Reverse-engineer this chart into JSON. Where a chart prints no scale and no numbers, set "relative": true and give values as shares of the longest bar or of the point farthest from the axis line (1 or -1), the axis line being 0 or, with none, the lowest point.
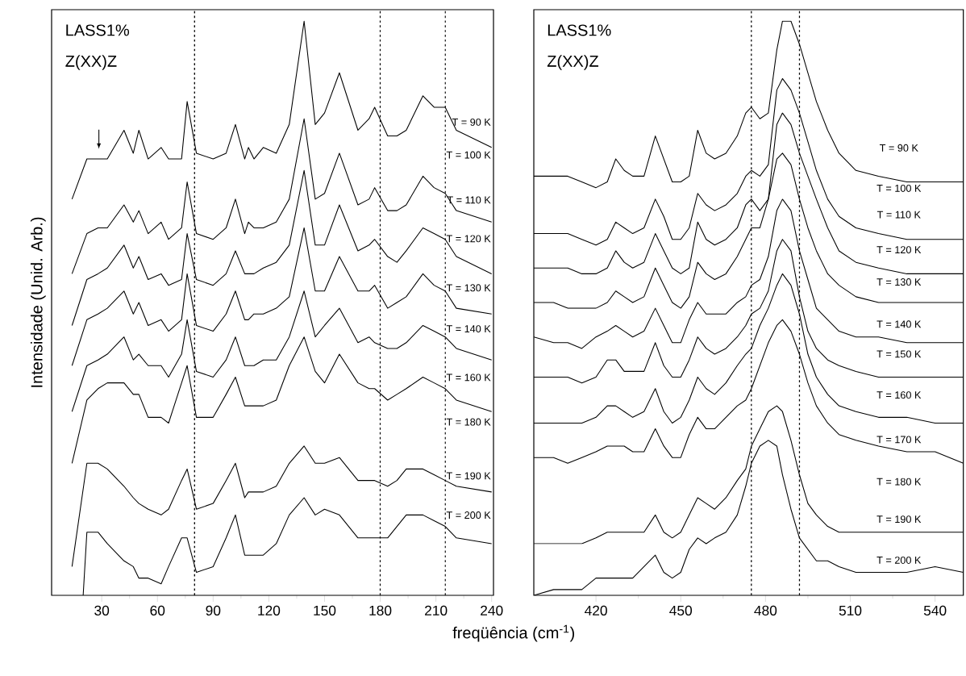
{
  "chart_data": [
    {
      "type": "line",
      "relative": true,
      "ylabel": "Intensidade (Unid. Arb.)",
      "xlabel": "freqüência (cm$^{-1}$)",
      "xlim": [
        3,
        241
      ],
      "xticks": [
        30,
        60,
        90,
        120,
        150,
        180,
        210,
        240
      ],
      "x": [
        14,
        22,
        28,
        33,
        42,
        47,
        50,
        55,
        62,
        66,
        73,
        76,
        81,
        90,
        97,
        102,
        107,
        109,
        112,
        117,
        124,
        131,
        139,
        145,
        150,
        158,
        168,
        174,
        177,
        184,
        189,
        194,
        203,
        209,
        215,
        221,
        240
      ],
      "series": [
        {
          "color": "#000000",
          "values": [
            0.69,
            0.76,
            0.76,
            0.76,
            0.81,
            0.77,
            0.81,
            0.76,
            0.78,
            0.76,
            0.76,
            0.86,
            0.77,
            0.76,
            0.77,
            0.82,
            0.76,
            0.78,
            0.76,
            0.78,
            0.77,
            0.82,
            1.0,
            0.82,
            0.84,
            0.91,
            0.81,
            0.83,
            0.85,
            0.8,
            0.8,
            0.81,
            0.87,
            0.85,
            0.85,
            0.81,
            0.78
          ]
        },
        {
          "color": "#000000",
          "values": [
            0.56,
            0.63,
            0.64,
            0.64,
            0.68,
            0.65,
            0.67,
            0.63,
            0.65,
            0.62,
            0.64,
            0.72,
            0.63,
            0.62,
            0.64,
            0.69,
            0.63,
            0.65,
            0.64,
            0.64,
            0.65,
            0.69,
            0.83,
            0.69,
            0.7,
            0.77,
            0.68,
            0.69,
            0.71,
            0.67,
            0.67,
            0.68,
            0.73,
            0.71,
            0.7,
            0.67,
            0.65
          ]
        },
        {
          "color": "#000000",
          "values": [
            0.47,
            0.55,
            0.56,
            0.57,
            0.61,
            0.57,
            0.59,
            0.55,
            0.56,
            0.54,
            0.55,
            0.63,
            0.55,
            0.54,
            0.56,
            0.6,
            0.56,
            0.56,
            0.56,
            0.57,
            0.58,
            0.61,
            0.74,
            0.61,
            0.61,
            0.68,
            0.6,
            0.61,
            0.62,
            0.59,
            0.58,
            0.6,
            0.64,
            0.63,
            0.62,
            0.59,
            0.56
          ]
        },
        {
          "color": "#000000",
          "values": [
            0.4,
            0.48,
            0.49,
            0.5,
            0.53,
            0.49,
            0.51,
            0.47,
            0.48,
            0.46,
            0.48,
            0.56,
            0.47,
            0.46,
            0.49,
            0.53,
            0.48,
            0.48,
            0.49,
            0.49,
            0.5,
            0.52,
            0.64,
            0.53,
            0.53,
            0.59,
            0.53,
            0.53,
            0.54,
            0.5,
            0.51,
            0.52,
            0.56,
            0.54,
            0.53,
            0.5,
            0.49
          ]
        },
        {
          "color": "#000000",
          "values": [
            0.32,
            0.4,
            0.41,
            0.42,
            0.45,
            0.41,
            0.42,
            0.4,
            0.4,
            0.38,
            0.42,
            0.48,
            0.39,
            0.38,
            0.41,
            0.45,
            0.4,
            0.4,
            0.4,
            0.41,
            0.41,
            0.45,
            0.53,
            0.45,
            0.47,
            0.5,
            0.44,
            0.45,
            0.44,
            0.43,
            0.43,
            0.44,
            0.47,
            0.46,
            0.45,
            0.43,
            0.41
          ]
        },
        {
          "color": "#000000",
          "values": [
            0.23,
            0.34,
            0.36,
            0.37,
            0.37,
            0.35,
            0.35,
            0.31,
            0.31,
            0.3,
            0.37,
            0.4,
            0.31,
            0.31,
            0.35,
            0.38,
            0.33,
            0.33,
            0.33,
            0.33,
            0.34,
            0.4,
            0.45,
            0.39,
            0.37,
            0.42,
            0.37,
            0.36,
            0.36,
            0.34,
            0.35,
            0.36,
            0.38,
            0.37,
            0.36,
            0.34,
            0.32
          ]
        },
        {
          "color": "#000000",
          "values": [
            0.05,
            0.23,
            0.23,
            0.22,
            0.19,
            0.17,
            0.16,
            0.15,
            0.14,
            0.15,
            0.2,
            0.22,
            0.15,
            0.16,
            0.2,
            0.23,
            0.17,
            0.18,
            0.18,
            0.18,
            0.19,
            0.23,
            0.26,
            0.23,
            0.23,
            0.24,
            0.2,
            0.2,
            0.2,
            0.19,
            0.2,
            0.22,
            0.22,
            0.21,
            0.2,
            0.19,
            0.18
          ]
        },
        {
          "color": "#000000",
          "x": [
            20,
            22,
            28,
            33,
            42,
            47,
            50,
            55,
            62,
            66,
            73,
            76,
            81,
            90,
            97,
            102,
            107,
            109,
            112,
            117,
            124,
            131,
            139,
            145,
            150,
            158,
            168,
            174,
            177,
            184,
            189,
            194,
            203,
            209,
            215,
            221,
            240
          ],
          "values": [
            0.0,
            0.11,
            0.11,
            0.09,
            0.06,
            0.05,
            0.03,
            0.03,
            0.02,
            0.05,
            0.1,
            0.1,
            0.04,
            0.05,
            0.1,
            0.14,
            0.07,
            0.07,
            0.07,
            0.07,
            0.09,
            0.14,
            0.17,
            0.14,
            0.15,
            0.14,
            0.1,
            0.1,
            0.1,
            0.1,
            0.12,
            0.14,
            0.14,
            0.13,
            0.12,
            0.1,
            0.09
          ]
        }
      ],
      "ref_lines": [
        {
          "axis": "x",
          "value": 80,
          "color": "#000000",
          "line_style": "dotted"
        },
        {
          "axis": "x",
          "value": 180,
          "color": "#000000",
          "line_style": "dotted"
        },
        {
          "axis": "x",
          "value": 215,
          "color": "#000000",
          "line_style": "dotted"
        }
      ],
      "annotations": [
        "LASS1%",
        "Z(XX)Z",
        "T = 90 K",
        "T = 100 K",
        "T = 110 K",
        "T = 120 K",
        "T = 130 K",
        "T = 140 K",
        "T = 160 K",
        "T = 180 K",
        "T = 190 K",
        "T = 200 K"
      ]
    },
    {
      "type": "line",
      "relative": true,
      "xlim": [
        398,
        550
      ],
      "xticks": [
        420,
        450,
        480,
        510,
        540
      ],
      "x": [
        398,
        405,
        410,
        415,
        420,
        424,
        427,
        430,
        433,
        437,
        441,
        444,
        447,
        450,
        453,
        456,
        459,
        462,
        466,
        470,
        473,
        475,
        478,
        481,
        484,
        486,
        489,
        492,
        495,
        498,
        502,
        506,
        512,
        520,
        530,
        540,
        550
      ],
      "series": [
        {
          "color": "#000000",
          "values": [
            0.73,
            0.73,
            0.73,
            0.72,
            0.71,
            0.72,
            0.76,
            0.74,
            0.73,
            0.73,
            0.8,
            0.76,
            0.72,
            0.72,
            0.73,
            0.81,
            0.77,
            0.76,
            0.77,
            0.8,
            0.84,
            0.85,
            0.83,
            0.84,
            0.95,
            1.0,
            1.0,
            0.96,
            0.91,
            0.86,
            0.81,
            0.77,
            0.74,
            0.73,
            0.72,
            0.72,
            0.72
          ]
        },
        {
          "color": "#000000",
          "values": [
            0.63,
            0.63,
            0.63,
            0.62,
            0.61,
            0.62,
            0.65,
            0.64,
            0.63,
            0.64,
            0.69,
            0.66,
            0.62,
            0.62,
            0.64,
            0.7,
            0.68,
            0.67,
            0.68,
            0.7,
            0.73,
            0.74,
            0.73,
            0.75,
            0.88,
            0.9,
            0.88,
            0.84,
            0.79,
            0.74,
            0.69,
            0.66,
            0.64,
            0.63,
            0.62,
            0.62,
            0.62
          ]
        },
        {
          "color": "#000000",
          "values": [
            0.57,
            0.57,
            0.57,
            0.56,
            0.56,
            0.57,
            0.6,
            0.58,
            0.57,
            0.58,
            0.63,
            0.6,
            0.57,
            0.56,
            0.57,
            0.65,
            0.62,
            0.61,
            0.62,
            0.64,
            0.68,
            0.69,
            0.67,
            0.69,
            0.82,
            0.84,
            0.82,
            0.77,
            0.73,
            0.69,
            0.64,
            0.6,
            0.58,
            0.57,
            0.56,
            0.56,
            0.56
          ]
        },
        {
          "color": "#000000",
          "values": [
            0.51,
            0.51,
            0.5,
            0.5,
            0.5,
            0.51,
            0.53,
            0.52,
            0.51,
            0.52,
            0.57,
            0.54,
            0.51,
            0.5,
            0.52,
            0.58,
            0.56,
            0.55,
            0.56,
            0.59,
            0.62,
            0.64,
            0.64,
            0.69,
            0.76,
            0.77,
            0.75,
            0.69,
            0.64,
            0.6,
            0.56,
            0.54,
            0.52,
            0.51,
            0.51,
            0.51,
            0.51
          ]
        },
        {
          "color": "#000000",
          "values": [
            0.45,
            0.44,
            0.44,
            0.43,
            0.45,
            0.46,
            0.47,
            0.46,
            0.45,
            0.46,
            0.5,
            0.47,
            0.44,
            0.44,
            0.48,
            0.51,
            0.49,
            0.49,
            0.49,
            0.51,
            0.52,
            0.54,
            0.55,
            0.59,
            0.67,
            0.69,
            0.67,
            0.6,
            0.55,
            0.5,
            0.48,
            0.46,
            0.45,
            0.45,
            0.44,
            0.44,
            0.44
          ]
        },
        {
          "color": "#000000",
          "values": [
            0.38,
            0.38,
            0.38,
            0.37,
            0.38,
            0.41,
            0.41,
            0.39,
            0.39,
            0.39,
            0.44,
            0.4,
            0.38,
            0.38,
            0.41,
            0.45,
            0.43,
            0.42,
            0.43,
            0.45,
            0.47,
            0.49,
            0.5,
            0.53,
            0.6,
            0.62,
            0.6,
            0.52,
            0.46,
            0.43,
            0.41,
            0.4,
            0.39,
            0.38,
            0.38,
            0.38,
            0.38
          ]
        },
        {
          "color": "#000000",
          "values": [
            0.3,
            0.3,
            0.3,
            0.3,
            0.31,
            0.33,
            0.33,
            0.32,
            0.31,
            0.32,
            0.36,
            0.32,
            0.3,
            0.31,
            0.34,
            0.38,
            0.36,
            0.35,
            0.37,
            0.4,
            0.42,
            0.43,
            0.47,
            0.5,
            0.54,
            0.56,
            0.54,
            0.49,
            0.42,
            0.38,
            0.35,
            0.33,
            0.32,
            0.31,
            0.31,
            0.3,
            0.3
          ]
        },
        {
          "color": "#000000",
          "values": [
            0.24,
            0.24,
            0.23,
            0.24,
            0.25,
            0.26,
            0.26,
            0.26,
            0.25,
            0.25,
            0.29,
            0.26,
            0.24,
            0.24,
            0.28,
            0.31,
            0.29,
            0.29,
            0.31,
            0.33,
            0.34,
            0.36,
            0.4,
            0.44,
            0.47,
            0.48,
            0.46,
            0.42,
            0.37,
            0.33,
            0.3,
            0.28,
            0.27,
            0.26,
            0.25,
            0.25,
            0.23
          ]
        },
        {
          "color": "#000000",
          "values": [
            0.09,
            0.09,
            0.09,
            0.09,
            0.1,
            0.11,
            0.11,
            0.11,
            0.11,
            0.11,
            0.14,
            0.11,
            0.1,
            0.11,
            0.14,
            0.17,
            0.16,
            0.15,
            0.17,
            0.2,
            0.22,
            0.26,
            0.29,
            0.32,
            0.33,
            0.32,
            0.27,
            0.21,
            0.16,
            0.14,
            0.12,
            0.11,
            0.11,
            0.11,
            0.11,
            0.11,
            0.11
          ]
        },
        {
          "color": "#000000",
          "values": [
            0.0,
            0.01,
            0.01,
            0.01,
            0.03,
            0.03,
            0.03,
            0.03,
            0.03,
            0.05,
            0.07,
            0.04,
            0.03,
            0.04,
            0.08,
            0.1,
            0.09,
            0.1,
            0.11,
            0.14,
            0.19,
            0.23,
            0.26,
            0.27,
            0.26,
            0.21,
            0.15,
            0.1,
            0.08,
            0.06,
            0.06,
            0.05,
            0.04,
            0.04,
            0.04,
            0.05,
            0.04
          ]
        }
      ],
      "ref_lines": [
        {
          "axis": "x",
          "value": 475,
          "color": "#000000",
          "line_style": "dotted"
        },
        {
          "axis": "x",
          "value": 492,
          "color": "#000000",
          "line_style": "dotted"
        }
      ],
      "annotations": [
        "LASS1%",
        "Z(XX)Z",
        "T = 90 K",
        "T = 100 K",
        "T = 110 K",
        "T = 120 K",
        "T = 130 K",
        "T = 140 K",
        "T = 150 K",
        "T = 160 K",
        "T = 170 K",
        "T = 180 K",
        "T = 190 K",
        "T = 200 K"
      ]
    }
  ]
}
